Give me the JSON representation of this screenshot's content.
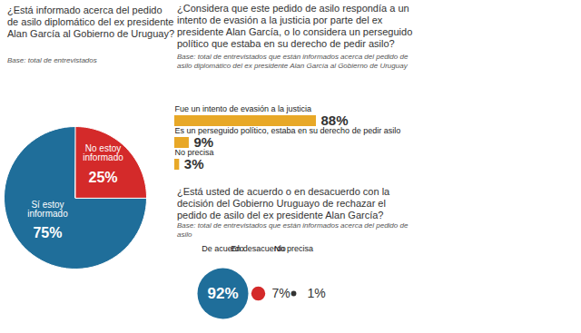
{
  "chart_data": [
    {
      "type": "pie",
      "title": "¿Está informado acerca del pedido de asilo diplomático del ex presidente Alan García al Gobierno de Uruguay?",
      "subtitle": "Base: total de entrevistados",
      "categories": [
        "Sí estoy informado",
        "No estoy informado"
      ],
      "values": [
        75,
        25
      ],
      "value_labels": [
        "75%",
        "25%"
      ],
      "colors": [
        "#1f6e9a",
        "#d42a2a"
      ],
      "data_labels": true
    },
    {
      "type": "bar",
      "orientation": "horizontal",
      "title": "¿Considera que este pedido de asilo respondía a un intento de evasión a la justicia por parte del ex presidente Alan García, o lo considera un perseguido político que estaba en su derecho de pedir asilo?",
      "subtitle": "Base: total de entrevistados que están informados acerca del pedido de asilo diplomático del ex presidente Alan García al Gobierno de Uruguay",
      "categories": [
        "Fue un intento de evasión a la justicia",
        "Es un perseguido político, estaba en su derecho de pedir asilo",
        "No precisa"
      ],
      "values": [
        88,
        9,
        3
      ],
      "value_labels": [
        "88%",
        "9%",
        "3%"
      ],
      "color": "#e8a827",
      "data_labels": true,
      "tick_labels": false
    },
    {
      "type": "bubble",
      "title": "¿Está usted de acuerdo o en desacuerdo con la decisión del Gobierno Uruguayo de rechazar el pedido de asilo del ex presidente Alan García?",
      "subtitle": "Base: total de entrevistados que están informados acerca del pedido de asilo",
      "categories": [
        "De acuerdo",
        "En desacuerdo",
        "No precisa"
      ],
      "values": [
        92,
        7,
        1
      ],
      "value_labels": [
        "92%",
        "7%",
        "1%"
      ],
      "colors": [
        "#1f6e9a",
        "#d42a2a",
        "#333333"
      ],
      "data_labels": true,
      "tick_labels": false
    }
  ]
}
